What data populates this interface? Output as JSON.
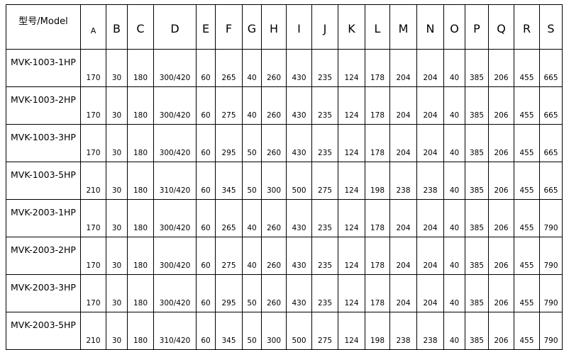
{
  "table": {
    "model_header": "型号/Model",
    "columns": [
      "A",
      "B",
      "C",
      "D",
      "E",
      "F",
      "G",
      "H",
      "I",
      "J",
      "K",
      "L",
      "M",
      "N",
      "O",
      "P",
      "Q",
      "R",
      "S"
    ],
    "rows": [
      {
        "model": "MVK-1003-1HP",
        "values": [
          "170",
          "30",
          "180",
          "300/420",
          "60",
          "265",
          "40",
          "260",
          "430",
          "235",
          "124",
          "178",
          "204",
          "204",
          "40",
          "385",
          "206",
          "455",
          "665"
        ]
      },
      {
        "model": "MVK-1003-2HP",
        "values": [
          "170",
          "30",
          "180",
          "300/420",
          "60",
          "275",
          "40",
          "260",
          "430",
          "235",
          "124",
          "178",
          "204",
          "204",
          "40",
          "385",
          "206",
          "455",
          "665"
        ]
      },
      {
        "model": "MVK-1003-3HP",
        "values": [
          "170",
          "30",
          "180",
          "300/420",
          "60",
          "295",
          "50",
          "260",
          "430",
          "235",
          "124",
          "178",
          "204",
          "204",
          "40",
          "385",
          "206",
          "455",
          "665"
        ]
      },
      {
        "model": "MVK-1003-5HP",
        "values": [
          "210",
          "30",
          "180",
          "310/420",
          "60",
          "345",
          "50",
          "300",
          "500",
          "275",
          "124",
          "198",
          "238",
          "238",
          "40",
          "385",
          "206",
          "455",
          "665"
        ]
      },
      {
        "model": "MVK-2003-1HP",
        "values": [
          "170",
          "30",
          "180",
          "300/420",
          "60",
          "265",
          "40",
          "260",
          "430",
          "235",
          "124",
          "178",
          "204",
          "204",
          "40",
          "385",
          "206",
          "455",
          "790"
        ]
      },
      {
        "model": "MVK-2003-2HP",
        "values": [
          "170",
          "30",
          "180",
          "300/420",
          "60",
          "275",
          "40",
          "260",
          "430",
          "235",
          "124",
          "178",
          "204",
          "204",
          "40",
          "385",
          "206",
          "455",
          "790"
        ]
      },
      {
        "model": "MVK-2003-3HP",
        "values": [
          "170",
          "30",
          "180",
          "300/420",
          "60",
          "295",
          "50",
          "260",
          "430",
          "235",
          "124",
          "178",
          "204",
          "204",
          "40",
          "385",
          "206",
          "455",
          "790"
        ]
      },
      {
        "model": "MVK-2003-5HP",
        "values": [
          "210",
          "30",
          "180",
          "310/420",
          "60",
          "345",
          "50",
          "300",
          "500",
          "275",
          "124",
          "198",
          "238",
          "238",
          "40",
          "385",
          "206",
          "455",
          "790"
        ]
      }
    ]
  }
}
